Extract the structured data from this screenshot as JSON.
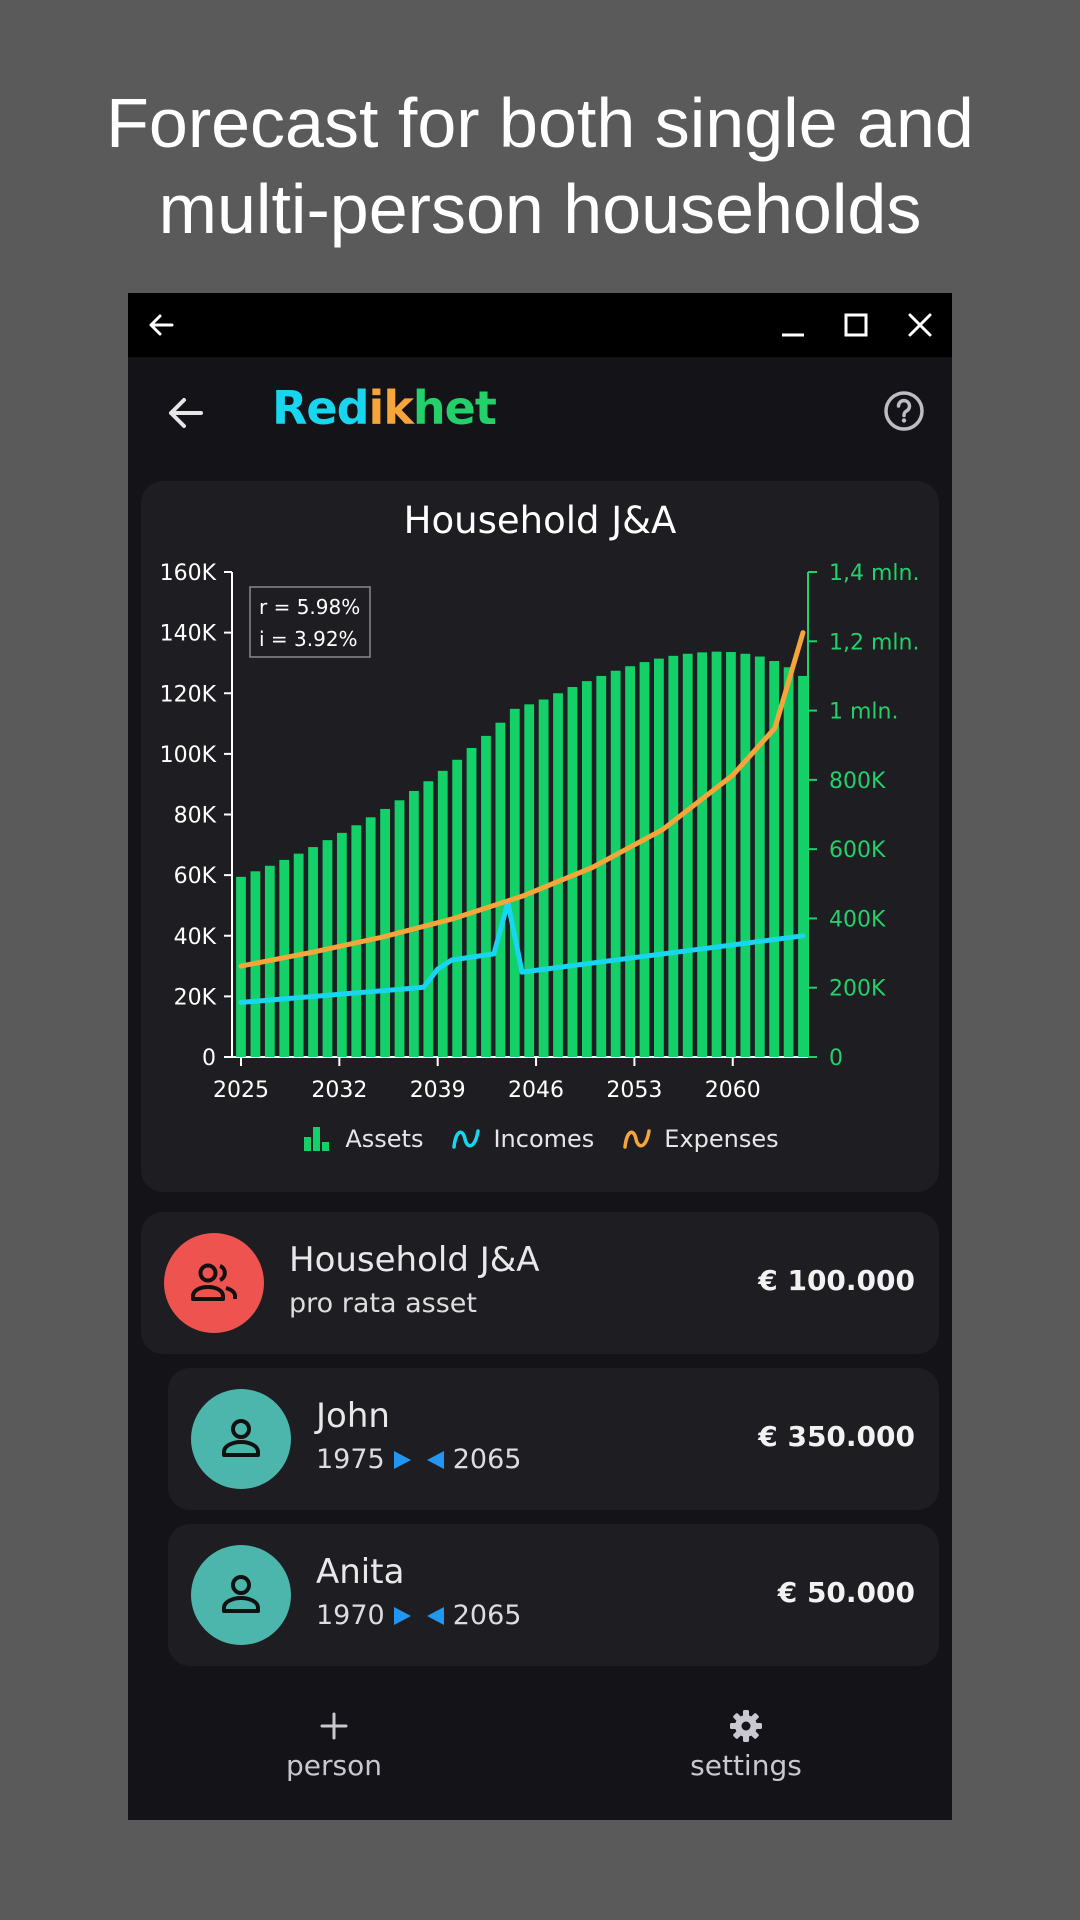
{
  "headline": {
    "line1": "Forecast for both single and",
    "line2": "multi-person households"
  },
  "window": {
    "back_icon": "arrow-left-icon",
    "minimize_icon": "minimize-icon",
    "maximize_icon": "maximize-icon",
    "close_icon": "close-icon"
  },
  "appbar": {
    "logo_parts": [
      "Red",
      "ik",
      "het"
    ],
    "logo_colors": [
      "#18d6f0",
      "#f5a53a",
      "#22d16a"
    ],
    "back_icon": "arrow-left-icon",
    "help_icon": "help-circle-icon"
  },
  "chart_data": {
    "type": "bar",
    "title": "Household J&A",
    "annotation": [
      "r = 5.98%",
      "i = 3.92%"
    ],
    "x_start": 2025,
    "x_end": 2065,
    "x_ticks": [
      "2025",
      "2032",
      "2039",
      "2046",
      "2053",
      "2060"
    ],
    "left_axis": {
      "ticks": [
        "0",
        "20K",
        "40K",
        "60K",
        "80K",
        "100K",
        "120K",
        "140K",
        "160K"
      ],
      "ylim": [
        0,
        160000
      ],
      "color": "#ffffff"
    },
    "right_axis": {
      "ticks": [
        "0",
        "200K",
        "400K",
        "600K",
        "800K",
        "1 mln.",
        "1,2 mln.",
        "1,4 mln."
      ],
      "ylim": [
        0,
        1400000
      ],
      "color": "#22d16a"
    },
    "series": [
      {
        "name": "Assets",
        "type": "bar",
        "axis": "right",
        "color": "#13d068",
        "values": [
          520000,
          536000,
          552000,
          569000,
          587000,
          606000,
          626000,
          647000,
          669000,
          692000,
          716000,
          741000,
          768000,
          796000,
          826000,
          858000,
          892000,
          927000,
          965000,
          1005000,
          1018000,
          1032000,
          1050000,
          1068000,
          1085000,
          1100000,
          1115000,
          1128000,
          1140000,
          1150000,
          1158000,
          1164000,
          1168000,
          1170000,
          1169000,
          1164000,
          1156000,
          1143000,
          1125000,
          1100000
        ]
      },
      {
        "name": "Incomes",
        "type": "line",
        "axis": "left",
        "color": "#18d6f0",
        "points": [
          [
            2025,
            18000
          ],
          [
            2038,
            23000
          ],
          [
            2039,
            29000
          ],
          [
            2040,
            32000
          ],
          [
            2043,
            34000
          ],
          [
            2044,
            51000
          ],
          [
            2045,
            28000
          ],
          [
            2065,
            40000
          ]
        ]
      },
      {
        "name": "Expenses",
        "type": "line",
        "axis": "left",
        "color": "#f5a53a",
        "points": [
          [
            2025,
            30000
          ],
          [
            2030,
            34500
          ],
          [
            2035,
            39500
          ],
          [
            2040,
            45500
          ],
          [
            2045,
            53000
          ],
          [
            2050,
            62500
          ],
          [
            2055,
            75000
          ],
          [
            2060,
            93000
          ],
          [
            2063,
            108500
          ],
          [
            2065,
            140000
          ]
        ]
      }
    ],
    "legend": [
      "Assets",
      "Incomes",
      "Expenses"
    ]
  },
  "household": {
    "name": "Household J&A",
    "subtitle": "pro rata asset",
    "amount": "€ 100.000",
    "avatar_icon": "group-icon",
    "avatar_color": "#ef5350"
  },
  "persons": [
    {
      "name": "John",
      "birth": "1975",
      "death": "2065",
      "amount": "€ 350.000",
      "avatar_icon": "person-icon",
      "avatar_color": "#4db6ac"
    },
    {
      "name": "Anita",
      "birth": "1970",
      "death": "2065",
      "amount": "€ 50.000",
      "avatar_icon": "person-icon",
      "avatar_color": "#4db6ac"
    }
  ],
  "bottom_nav": {
    "add_label": "person",
    "add_icon": "plus-icon",
    "settings_label": "settings",
    "settings_icon": "gear-icon"
  }
}
